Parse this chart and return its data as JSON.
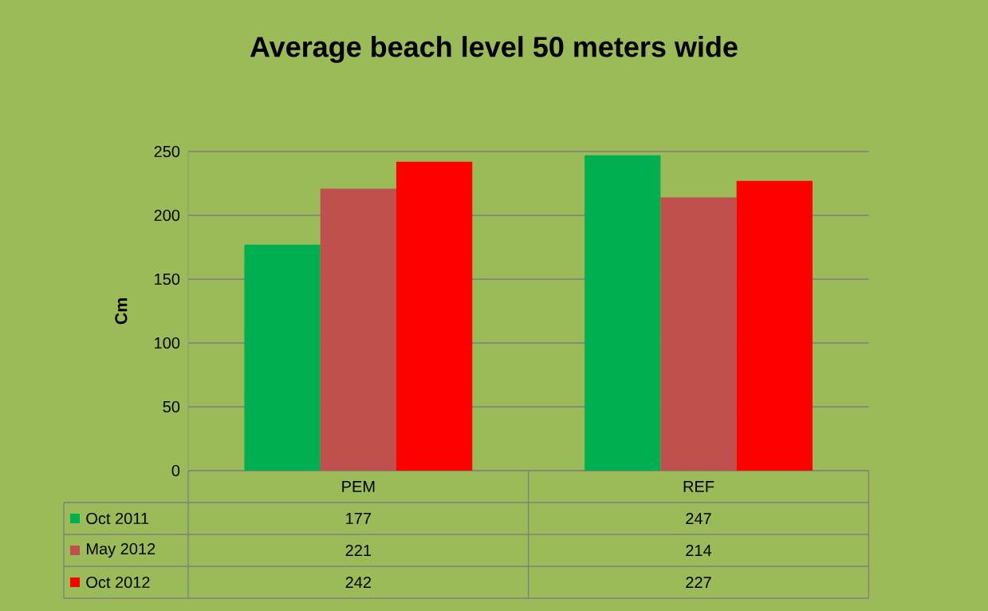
{
  "chart_data": {
    "type": "bar",
    "title": "Average beach level 50 meters wide",
    "ylabel": "Cm",
    "categories": [
      "PEM",
      "REF"
    ],
    "series": [
      {
        "name": "Oct 2011",
        "color": "#00b050",
        "values": [
          177,
          247
        ]
      },
      {
        "name": "May 2012",
        "color": "#c0504d",
        "values": [
          221,
          214
        ]
      },
      {
        "name": "Oct 2012",
        "color": "#ff0000",
        "values": [
          242,
          227
        ]
      }
    ],
    "ylim": [
      0,
      250
    ],
    "yticks": [
      0,
      50,
      100,
      150,
      200,
      250
    ],
    "grid": "y",
    "legend": "bottom",
    "data_labels": true
  }
}
